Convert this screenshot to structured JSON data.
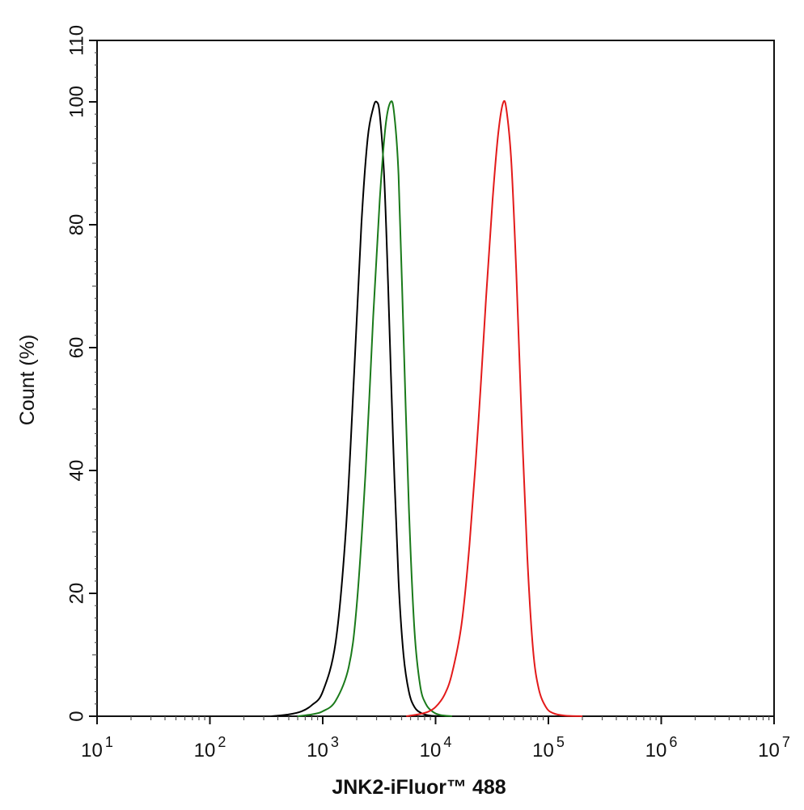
{
  "chart_data": {
    "type": "line",
    "xlabel": "JNK2-iFluor™ 488",
    "ylabel": "Count  (%)",
    "x_scale": "log",
    "xlim": [
      10,
      10000000
    ],
    "ylim": [
      0,
      110
    ],
    "x_ticks": [
      {
        "value": 10,
        "base": "10",
        "exp": "1"
      },
      {
        "value": 100,
        "base": "10",
        "exp": "2"
      },
      {
        "value": 1000,
        "base": "10",
        "exp": "3"
      },
      {
        "value": 10000,
        "base": "10",
        "exp": "4"
      },
      {
        "value": 100000,
        "base": "10",
        "exp": "5"
      },
      {
        "value": 1000000,
        "base": "10",
        "exp": "6"
      },
      {
        "value": 10000000,
        "base": "10",
        "exp": "7"
      }
    ],
    "y_ticks": [
      {
        "value": 0,
        "label": "0"
      },
      {
        "value": 20,
        "label": "20"
      },
      {
        "value": 40,
        "label": "40"
      },
      {
        "value": 60,
        "label": "60"
      },
      {
        "value": 80,
        "label": "80"
      },
      {
        "value": 100,
        "label": "100"
      },
      {
        "value": 110,
        "label": "110"
      }
    ],
    "grid": false,
    "legend": "none",
    "series": [
      {
        "color": "#000000",
        "x": [
          350,
          500,
          650,
          800,
          1000,
          1300,
          1600,
          1900,
          2200,
          2500,
          2800,
          3000,
          3200,
          3500,
          3800,
          4200,
          4700,
          5200,
          5800,
          6500,
          7500,
          9000,
          12000
        ],
        "y": [
          0,
          0.3,
          0.8,
          1.8,
          4,
          12,
          30,
          56,
          80,
          94,
          99,
          100,
          98,
          88,
          70,
          45,
          22,
          10,
          4,
          1.5,
          0.5,
          0.1,
          0
        ]
      },
      {
        "color": "#1a7a1a",
        "x": [
          600,
          800,
          1000,
          1300,
          1700,
          2000,
          2400,
          2800,
          3200,
          3600,
          4000,
          4300,
          4700,
          5200,
          5800,
          6500,
          7300,
          8200,
          9500,
          11000,
          14000
        ],
        "y": [
          0,
          0.3,
          0.8,
          2.5,
          8,
          18,
          40,
          65,
          84,
          96,
          100,
          98,
          88,
          62,
          34,
          14,
          5,
          2,
          0.7,
          0.2,
          0
        ]
      },
      {
        "color": "#e31a1a",
        "x": [
          5500,
          7000,
          8500,
          10000,
          12000,
          14000,
          17000,
          20000,
          24000,
          28000,
          32000,
          36000,
          40000,
          43000,
          47000,
          52000,
          58000,
          65000,
          73000,
          82000,
          95000,
          110000,
          140000,
          200000
        ],
        "y": [
          0,
          0.3,
          0.7,
          1.5,
          3.5,
          7,
          15,
          28,
          48,
          68,
          84,
          95,
          100,
          98,
          90,
          72,
          48,
          26,
          11,
          4.5,
          1.5,
          0.5,
          0.1,
          0
        ]
      }
    ]
  }
}
